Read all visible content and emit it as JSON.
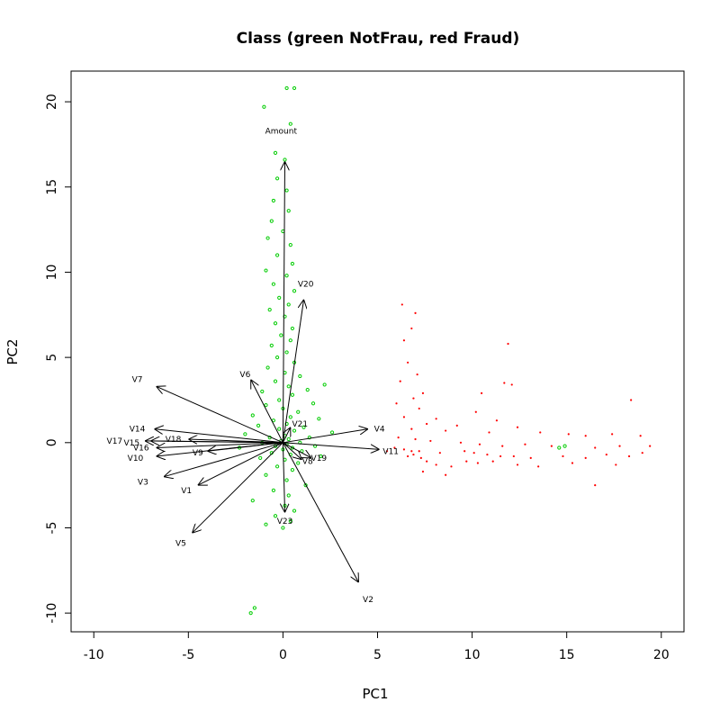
{
  "chart_data": {
    "type": "scatter",
    "title": "Class (green NotFrau,  red Fraud)",
    "xlabel": "PC1",
    "ylabel": "PC2",
    "xlim": [
      -11.2,
      21.2
    ],
    "ylim": [
      -11.1,
      21.8
    ],
    "x_ticks": [
      -10,
      -5,
      0,
      5,
      10,
      15,
      20
    ],
    "y_ticks": [
      -10,
      -5,
      0,
      5,
      10,
      15,
      20
    ],
    "colors": {
      "NotFraud": "#00cc00",
      "Fraud": "#ff0000",
      "arrow": "#000000"
    },
    "series": [
      {
        "name": "NotFraud",
        "marker": "circle-open",
        "points": [
          [
            0.2,
            20.8
          ],
          [
            0.6,
            20.8
          ],
          [
            -1.0,
            19.7
          ],
          [
            0.4,
            18.7
          ],
          [
            -0.4,
            17.0
          ],
          [
            0.1,
            16.6
          ],
          [
            -0.3,
            15.5
          ],
          [
            0.2,
            14.8
          ],
          [
            -0.5,
            14.2
          ],
          [
            0.3,
            13.6
          ],
          [
            -0.6,
            13.0
          ],
          [
            0.0,
            12.4
          ],
          [
            -0.8,
            12.0
          ],
          [
            0.4,
            11.6
          ],
          [
            -0.3,
            11.0
          ],
          [
            0.5,
            10.5
          ],
          [
            -0.9,
            10.1
          ],
          [
            0.2,
            9.8
          ],
          [
            -0.5,
            9.3
          ],
          [
            0.6,
            8.9
          ],
          [
            -0.2,
            8.5
          ],
          [
            0.3,
            8.1
          ],
          [
            -0.7,
            7.8
          ],
          [
            0.1,
            7.4
          ],
          [
            -0.4,
            7.0
          ],
          [
            0.5,
            6.7
          ],
          [
            -0.1,
            6.3
          ],
          [
            0.4,
            6.0
          ],
          [
            -0.6,
            5.7
          ],
          [
            0.2,
            5.3
          ],
          [
            -0.3,
            5.0
          ],
          [
            0.6,
            4.7
          ],
          [
            -0.8,
            4.4
          ],
          [
            0.1,
            4.1
          ],
          [
            0.9,
            3.9
          ],
          [
            -0.4,
            3.6
          ],
          [
            0.3,
            3.3
          ],
          [
            1.3,
            3.1
          ],
          [
            2.2,
            3.4
          ],
          [
            -1.1,
            3.0
          ],
          [
            0.5,
            2.8
          ],
          [
            -0.2,
            2.5
          ],
          [
            1.6,
            2.3
          ],
          [
            -0.9,
            2.2
          ],
          [
            0.0,
            2.0
          ],
          [
            0.8,
            1.8
          ],
          [
            -1.6,
            1.6
          ],
          [
            0.4,
            1.5
          ],
          [
            1.9,
            1.4
          ],
          [
            -0.5,
            1.3
          ],
          [
            0.2,
            1.1
          ],
          [
            -1.3,
            1.0
          ],
          [
            1.1,
            0.9
          ],
          [
            -0.2,
            0.8
          ],
          [
            0.6,
            0.7
          ],
          [
            2.6,
            0.6
          ],
          [
            -2.0,
            0.5
          ],
          [
            0.1,
            0.4
          ],
          [
            1.4,
            0.3
          ],
          [
            -0.7,
            0.3
          ],
          [
            0.3,
            0.2
          ],
          [
            -0.1,
            0.1
          ],
          [
            0.9,
            0.0
          ],
          [
            -1.1,
            0.0
          ],
          [
            0.2,
            -0.1
          ],
          [
            1.7,
            -0.2
          ],
          [
            -0.4,
            -0.2
          ],
          [
            0.5,
            -0.3
          ],
          [
            -2.3,
            -0.3
          ],
          [
            0.0,
            -0.4
          ],
          [
            1.0,
            -0.5
          ],
          [
            -0.6,
            -0.6
          ],
          [
            0.4,
            -0.7
          ],
          [
            2.0,
            -0.8
          ],
          [
            -1.2,
            -0.9
          ],
          [
            0.1,
            -1.0
          ],
          [
            0.8,
            -1.2
          ],
          [
            -0.3,
            -1.4
          ],
          [
            0.5,
            -1.6
          ],
          [
            -0.9,
            -1.9
          ],
          [
            0.2,
            -2.2
          ],
          [
            1.2,
            -2.5
          ],
          [
            -0.5,
            -2.8
          ],
          [
            0.3,
            -3.1
          ],
          [
            -1.6,
            -3.4
          ],
          [
            0.1,
            -3.7
          ],
          [
            0.6,
            -4.0
          ],
          [
            -0.4,
            -4.3
          ],
          [
            0.4,
            -4.6
          ],
          [
            -0.9,
            -4.8
          ],
          [
            0.0,
            -5.0
          ],
          [
            14.6,
            -0.3
          ],
          [
            14.9,
            -0.2
          ],
          [
            -1.5,
            -9.7
          ],
          [
            -1.7,
            -10.0
          ]
        ]
      },
      {
        "name": "Fraud",
        "marker": "dot",
        "points": [
          [
            6.3,
            8.1
          ],
          [
            7.0,
            7.6
          ],
          [
            6.8,
            6.7
          ],
          [
            6.4,
            6.0
          ],
          [
            11.9,
            5.8
          ],
          [
            6.6,
            4.7
          ],
          [
            7.1,
            4.0
          ],
          [
            6.2,
            3.6
          ],
          [
            11.7,
            3.5
          ],
          [
            12.1,
            3.4
          ],
          [
            7.4,
            2.9
          ],
          [
            10.5,
            2.9
          ],
          [
            6.9,
            2.6
          ],
          [
            6.0,
            2.3
          ],
          [
            18.4,
            2.5
          ],
          [
            7.2,
            2.0
          ],
          [
            10.2,
            1.8
          ],
          [
            6.4,
            1.5
          ],
          [
            8.1,
            1.4
          ],
          [
            11.3,
            1.3
          ],
          [
            7.6,
            1.1
          ],
          [
            9.2,
            1.0
          ],
          [
            12.4,
            0.9
          ],
          [
            6.8,
            0.8
          ],
          [
            8.6,
            0.7
          ],
          [
            10.9,
            0.6
          ],
          [
            13.6,
            0.6
          ],
          [
            15.1,
            0.5
          ],
          [
            16.0,
            0.4
          ],
          [
            17.4,
            0.5
          ],
          [
            18.9,
            0.4
          ],
          [
            6.1,
            0.3
          ],
          [
            7.0,
            0.2
          ],
          [
            7.8,
            0.1
          ],
          [
            9.4,
            0.0
          ],
          [
            10.4,
            -0.1
          ],
          [
            11.6,
            -0.2
          ],
          [
            12.8,
            -0.1
          ],
          [
            14.2,
            -0.2
          ],
          [
            16.5,
            -0.3
          ],
          [
            17.8,
            -0.2
          ],
          [
            19.4,
            -0.2
          ],
          [
            6.4,
            -0.4
          ],
          [
            6.8,
            -0.5
          ],
          [
            7.2,
            -0.5
          ],
          [
            6.9,
            -0.7
          ],
          [
            7.3,
            -0.9
          ],
          [
            6.6,
            -0.8
          ],
          [
            8.3,
            -0.6
          ],
          [
            9.6,
            -0.5
          ],
          [
            10.1,
            -0.6
          ],
          [
            10.8,
            -0.7
          ],
          [
            11.5,
            -0.8
          ],
          [
            12.2,
            -0.8
          ],
          [
            13.1,
            -0.9
          ],
          [
            14.8,
            -0.8
          ],
          [
            16.0,
            -0.9
          ],
          [
            17.1,
            -0.7
          ],
          [
            18.3,
            -0.8
          ],
          [
            19.0,
            -0.6
          ],
          [
            7.6,
            -1.1
          ],
          [
            8.1,
            -1.3
          ],
          [
            8.9,
            -1.4
          ],
          [
            9.7,
            -1.1
          ],
          [
            10.3,
            -1.2
          ],
          [
            11.1,
            -1.1
          ],
          [
            12.4,
            -1.3
          ],
          [
            13.5,
            -1.4
          ],
          [
            15.3,
            -1.2
          ],
          [
            17.6,
            -1.3
          ],
          [
            7.4,
            -1.7
          ],
          [
            8.6,
            -1.9
          ],
          [
            5.9,
            -0.3
          ],
          [
            5.5,
            -0.5
          ],
          [
            16.5,
            -2.5
          ]
        ]
      }
    ],
    "arrows": [
      {
        "label": "Amount",
        "x": 0.1,
        "y": 16.5,
        "lx": -0.1,
        "ly": 18.3
      },
      {
        "label": "V20",
        "x": 1.1,
        "y": 8.4,
        "lx": 1.2,
        "ly": 9.3
      },
      {
        "label": "V7",
        "x": -6.7,
        "y": 3.3,
        "lx": -7.7,
        "ly": 3.7
      },
      {
        "label": "V6",
        "x": -1.7,
        "y": 3.7,
        "lx": -2.0,
        "ly": 4.0
      },
      {
        "label": "V14",
        "x": -6.8,
        "y": 0.8,
        "lx": -7.7,
        "ly": 0.8
      },
      {
        "label": "V17",
        "x": -7.3,
        "y": 0.1,
        "lx": -8.9,
        "ly": 0.1
      },
      {
        "label": "V15",
        "x": -7.0,
        "y": 0.1,
        "lx": -8.0,
        "ly": 0.0
      },
      {
        "label": "V16",
        "x": -6.7,
        "y": -0.3,
        "lx": -7.5,
        "ly": -0.3
      },
      {
        "label": "V18",
        "x": -5.0,
        "y": 0.2,
        "lx": -5.8,
        "ly": 0.2
      },
      {
        "label": "V9",
        "x": -4.0,
        "y": -0.5,
        "lx": -4.5,
        "ly": -0.6
      },
      {
        "label": "V10",
        "x": -6.7,
        "y": -0.8,
        "lx": -7.8,
        "ly": -0.9
      },
      {
        "label": "V3",
        "x": -6.3,
        "y": -2.0,
        "lx": -7.4,
        "ly": -2.3
      },
      {
        "label": "V1",
        "x": -4.5,
        "y": -2.5,
        "lx": -5.1,
        "ly": -2.8
      },
      {
        "label": "V5",
        "x": -4.8,
        "y": -5.3,
        "lx": -5.4,
        "ly": -5.9
      },
      {
        "label": "V4",
        "x": 4.5,
        "y": 0.8,
        "lx": 5.1,
        "ly": 0.8
      },
      {
        "label": "V11",
        "x": 5.1,
        "y": -0.4,
        "lx": 5.7,
        "ly": -0.5
      },
      {
        "label": "V21",
        "x": 0.4,
        "y": 0.9,
        "lx": 0.9,
        "ly": 1.1
      },
      {
        "label": "V19",
        "x": 1.5,
        "y": -0.9,
        "lx": 1.9,
        "ly": -0.9
      },
      {
        "label": "V8",
        "x": 1.0,
        "y": -1.0,
        "lx": 1.3,
        "ly": -1.1
      },
      {
        "label": "V23",
        "x": 0.1,
        "y": -4.1,
        "lx": 0.1,
        "ly": -4.6
      },
      {
        "label": "V2",
        "x": 4.0,
        "y": -8.2,
        "lx": 4.5,
        "ly": -9.2
      }
    ]
  }
}
